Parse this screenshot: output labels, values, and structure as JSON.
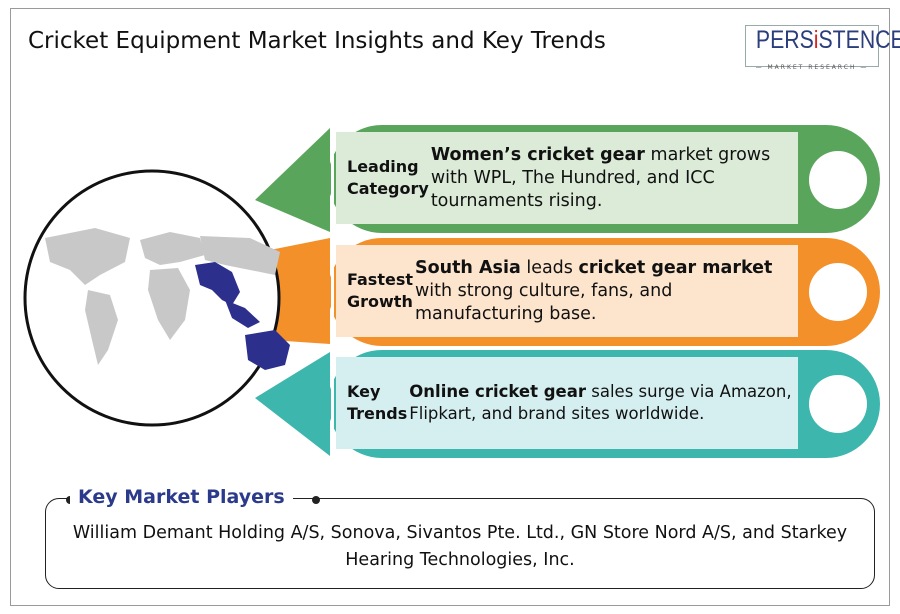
{
  "title": "Cricket Equipment Market Insights and Key Trends",
  "logo": {
    "name": "PERSISTENCE",
    "tagline": "MARKET RESEARCH"
  },
  "colors": {
    "green": "#5aa55c",
    "orange": "#f4902a",
    "teal": "#3db6ae",
    "navy": "#2b3a8a",
    "highlight_region": "#2c2f8c"
  },
  "bands": [
    {
      "category_line1": "Leading",
      "category_line2": "Category",
      "bold1": "Women’s cricket gear",
      "text1": " market grows with WPL, The Hundred, and ICC tournaments rising.",
      "bold2": "",
      "text2": ""
    },
    {
      "category_line1": "Fastest",
      "category_line2": "Growth",
      "bold1": "South Asia",
      "text1": " leads ",
      "bold2": "cricket gear market",
      "text2": " with strong culture, fans, and manufacturing base."
    },
    {
      "category_line1": "Key",
      "category_line2": "Trends",
      "bold1": "Online cricket gear",
      "text1": " sales surge via Amazon, Flipkart, and brand sites worldwide.",
      "bold2": "",
      "text2": ""
    }
  ],
  "players": {
    "title": "Key Market Players",
    "text": "William Demant Holding A/S, Sonova, Sivantos Pte. Ltd., GN Store Nord A/S, and Starkey Hearing Technologies, Inc."
  }
}
